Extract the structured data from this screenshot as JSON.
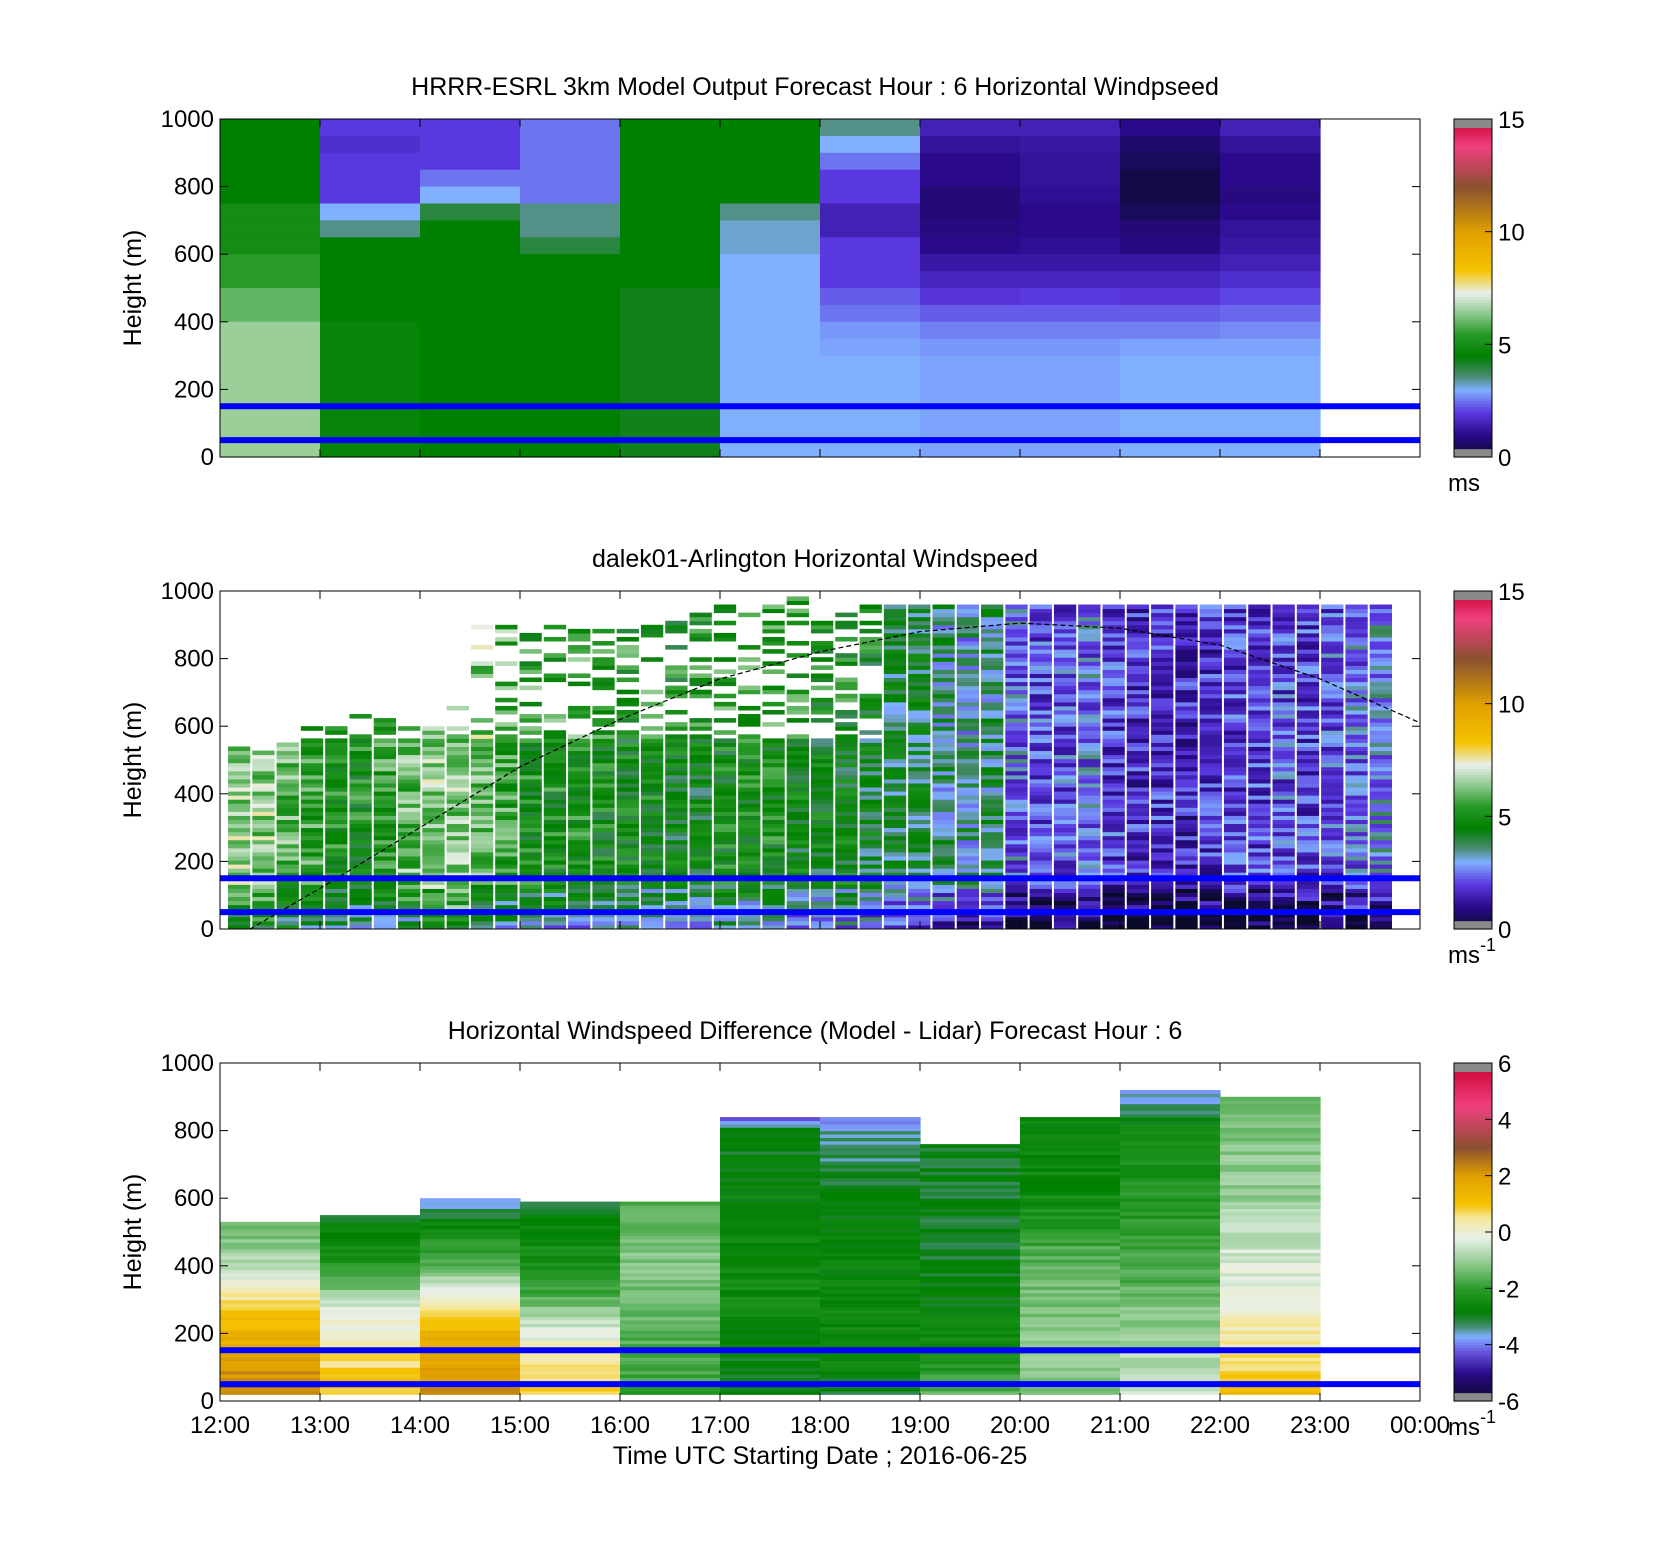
{
  "chart_data": [
    {
      "type": "heatmap",
      "title": "HRRR-ESRL 3km Model Output   Forecast Hour : 6 Horizontal Windpseed",
      "ylabel": "Height (m)",
      "xlabel": "",
      "ylim": [
        0,
        1000
      ],
      "xlim": [
        12,
        24
      ],
      "yticks": [
        "0",
        "200",
        "400",
        "600",
        "800",
        "1000"
      ],
      "xticks": [],
      "colorbar": {
        "range": [
          0,
          15
        ],
        "ticks": [
          "0",
          "5",
          "10",
          "15"
        ],
        "unit": "ms",
        "unit_sup": ""
      },
      "reference_lines_m": [
        50,
        150
      ],
      "data_shape": "hourly columns 12:00-23:00, 20 height rows 0-1000 m",
      "values_ms": [
        [
          4.5,
          2,
          2,
          2.5,
          4.5,
          4.5,
          3.5,
          1.5,
          1.5,
          1,
          1.5
        ],
        [
          4.5,
          1.8,
          2,
          2.5,
          4.5,
          4.5,
          3,
          1.2,
          1.3,
          0.7,
          1.2
        ],
        [
          4.5,
          2,
          2,
          2.5,
          4.5,
          4.5,
          2.5,
          1,
          1.2,
          0.5,
          1
        ],
        [
          4.5,
          2,
          2.5,
          2.5,
          4.5,
          4.5,
          2,
          1,
          1.2,
          0.3,
          1
        ],
        [
          4.5,
          2,
          3,
          2.5,
          4.5,
          4.5,
          2,
          0.8,
          1.1,
          0.3,
          0.9
        ],
        [
          5,
          3,
          4,
          3.5,
          4.5,
          3.5,
          1.5,
          0.8,
          1,
          0.5,
          1
        ],
        [
          5,
          3.5,
          4.5,
          3.5,
          4.5,
          3.2,
          1.5,
          0.9,
          1,
          0.8,
          1.2
        ],
        [
          5,
          4.5,
          4.5,
          4,
          4.5,
          3.2,
          2,
          1,
          1.1,
          0.9,
          1.3
        ],
        [
          5.5,
          4.5,
          4.5,
          4.5,
          4.5,
          3,
          2,
          1.3,
          1.3,
          1.3,
          1.5
        ],
        [
          5.5,
          4.5,
          4.5,
          4.5,
          4.5,
          3,
          2,
          1.6,
          1.6,
          1.6,
          1.8
        ],
        [
          6,
          4.5,
          4.5,
          4.5,
          4.3,
          3,
          2.3,
          1.9,
          2,
          1.9,
          2.1
        ],
        [
          6,
          4.5,
          4.5,
          4.5,
          4.3,
          3,
          2.5,
          2.3,
          2.3,
          2.3,
          2.4
        ],
        [
          6.5,
          4.7,
          4.5,
          4.5,
          4.3,
          3,
          2.8,
          2.6,
          2.6,
          2.6,
          2.7
        ],
        [
          6.5,
          4.7,
          4.5,
          4.5,
          4.3,
          3,
          2.9,
          2.8,
          2.8,
          2.9,
          2.9
        ],
        [
          6.5,
          4.7,
          4.5,
          4.5,
          4.3,
          3,
          3,
          2.9,
          2.9,
          3,
          3
        ],
        [
          6.5,
          4.7,
          4.5,
          4.5,
          4.3,
          3,
          3,
          2.9,
          2.9,
          3,
          3
        ],
        [
          6.5,
          4.7,
          4.5,
          4.5,
          4.3,
          3,
          3,
          2.9,
          2.9,
          3,
          3
        ],
        [
          6.5,
          4.7,
          4.5,
          4.5,
          4.3,
          3,
          3,
          2.9,
          2.9,
          3,
          3
        ],
        [
          6.5,
          4.7,
          4.5,
          4.5,
          4.3,
          3,
          3,
          2.9,
          2.9,
          3,
          3
        ],
        [
          6.5,
          4.7,
          4.5,
          4.5,
          4.3,
          3,
          3,
          2.9,
          2.9,
          3,
          3
        ]
      ]
    },
    {
      "type": "heatmap",
      "title": "dalek01-Arlington  Horizontal Windspeed",
      "ylabel": "Height (m)",
      "xlabel": "",
      "ylim": [
        0,
        1000
      ],
      "xlim": [
        12,
        24
      ],
      "yticks": [
        "0",
        "200",
        "400",
        "600",
        "800",
        "1000"
      ],
      "xticks": [],
      "colorbar": {
        "range": [
          0,
          15
        ],
        "ticks": [
          "0",
          "5",
          "10",
          "15"
        ],
        "unit": "ms",
        "unit_sup": "-1"
      },
      "reference_lines_m": [
        50,
        150
      ],
      "boundary_layer_curve": {
        "x": [
          12.3,
          13,
          14,
          15,
          16,
          17,
          18,
          19,
          20,
          21,
          22,
          23,
          24
        ],
        "y": [
          0,
          120,
          300,
          480,
          620,
          740,
          820,
          880,
          905,
          890,
          840,
          740,
          610
        ]
      },
      "column_top_m": [
        530,
        520,
        545,
        600,
        590,
        650,
        630,
        610,
        600,
        650,
        900,
        900,
        880,
        900,
        880,
        900,
        920,
        900,
        910,
        940,
        960,
        950,
        960,
        980,
        960,
        960,
        950,
        960,
        960,
        960,
        950,
        950,
        950,
        950,
        950,
        960,
        950,
        950,
        960,
        960,
        960,
        960,
        960,
        960,
        950,
        950,
        950,
        950
      ],
      "column_mean_ms": [
        6.5,
        6.5,
        6,
        5.5,
        5,
        5,
        5.5,
        6,
        6.5,
        6.5,
        6,
        5.5,
        5,
        5,
        5,
        4.8,
        4.7,
        4.8,
        4.5,
        4.5,
        4.8,
        5,
        5,
        4.5,
        4.5,
        4.5,
        4.2,
        4,
        4,
        3.5,
        3.2,
        3.6,
        2.5,
        2.2,
        2.2,
        2.5,
        2,
        1.8,
        1.8,
        1.6,
        1.8,
        2,
        2,
        2.2,
        2,
        2.2,
        2.5,
        2.8
      ]
    },
    {
      "type": "heatmap",
      "title": "Horizontal Windspeed Difference (Model - Lidar) Forecast Hour : 6",
      "ylabel": "Height (m)",
      "xlabel": "Time UTC  Starting Date ; 2016-06-25",
      "ylim": [
        0,
        1000
      ],
      "xlim": [
        12,
        24
      ],
      "yticks": [
        "0",
        "200",
        "400",
        "600",
        "800",
        "1000"
      ],
      "xticks": [
        "12:00",
        "13:00",
        "14:00",
        "15:00",
        "16:00",
        "17:00",
        "18:00",
        "19:00",
        "20:00",
        "21:00",
        "22:00",
        "23:00",
        "00:00"
      ],
      "colorbar": {
        "range": [
          -6,
          6
        ],
        "ticks": [
          "-6",
          "-4",
          "-2",
          "0",
          "2",
          "4",
          "6"
        ],
        "unit": "ms",
        "unit_sup": "-1"
      },
      "reference_lines_m": [
        50,
        150
      ],
      "column_top_m": [
        530,
        545,
        600,
        590,
        590,
        840,
        840,
        760,
        840,
        920,
        900
      ],
      "profiles_ms": [
        [
          [
            0,
            2.5
          ],
          [
            180,
            1.5
          ],
          [
            280,
            0.8
          ],
          [
            350,
            0
          ],
          [
            430,
            -1
          ],
          [
            530,
            -1.5
          ]
        ],
        [
          [
            0,
            1.2
          ],
          [
            180,
            0.3
          ],
          [
            280,
            -0.5
          ],
          [
            380,
            -2
          ],
          [
            545,
            -3
          ]
        ],
        [
          [
            0,
            2.2
          ],
          [
            120,
            1.8
          ],
          [
            250,
            1
          ],
          [
            320,
            0
          ],
          [
            400,
            -1.5
          ],
          [
            510,
            -2.5
          ],
          [
            600,
            -4
          ]
        ],
        [
          [
            0,
            1
          ],
          [
            150,
            0.2
          ],
          [
            260,
            -1
          ],
          [
            340,
            -2
          ],
          [
            590,
            -3
          ]
        ],
        [
          [
            0,
            -2
          ],
          [
            200,
            -1.5
          ],
          [
            400,
            -1.2
          ],
          [
            590,
            -1.6
          ]
        ],
        [
          [
            0,
            -3
          ],
          [
            300,
            -2.5
          ],
          [
            600,
            -2.7
          ],
          [
            800,
            -3
          ],
          [
            840,
            -4.5
          ]
        ],
        [
          [
            0,
            -3
          ],
          [
            150,
            -2.5
          ],
          [
            500,
            -2.7
          ],
          [
            800,
            -3.5
          ],
          [
            840,
            -4
          ]
        ],
        [
          [
            0,
            -1.5
          ],
          [
            150,
            -2.5
          ],
          [
            400,
            -3
          ],
          [
            760,
            -3
          ]
        ],
        [
          [
            0,
            -1.5
          ],
          [
            150,
            -1
          ],
          [
            400,
            -1.5
          ],
          [
            600,
            -2.5
          ],
          [
            840,
            -2.7
          ]
        ],
        [
          [
            0,
            -0.5
          ],
          [
            150,
            -0.8
          ],
          [
            400,
            -1.8
          ],
          [
            800,
            -2.5
          ],
          [
            920,
            -4
          ]
        ],
        [
          [
            0,
            1.3
          ],
          [
            150,
            0.5
          ],
          [
            350,
            -0.2
          ],
          [
            600,
            -1
          ],
          [
            900,
            -1.4
          ]
        ]
      ]
    }
  ]
}
